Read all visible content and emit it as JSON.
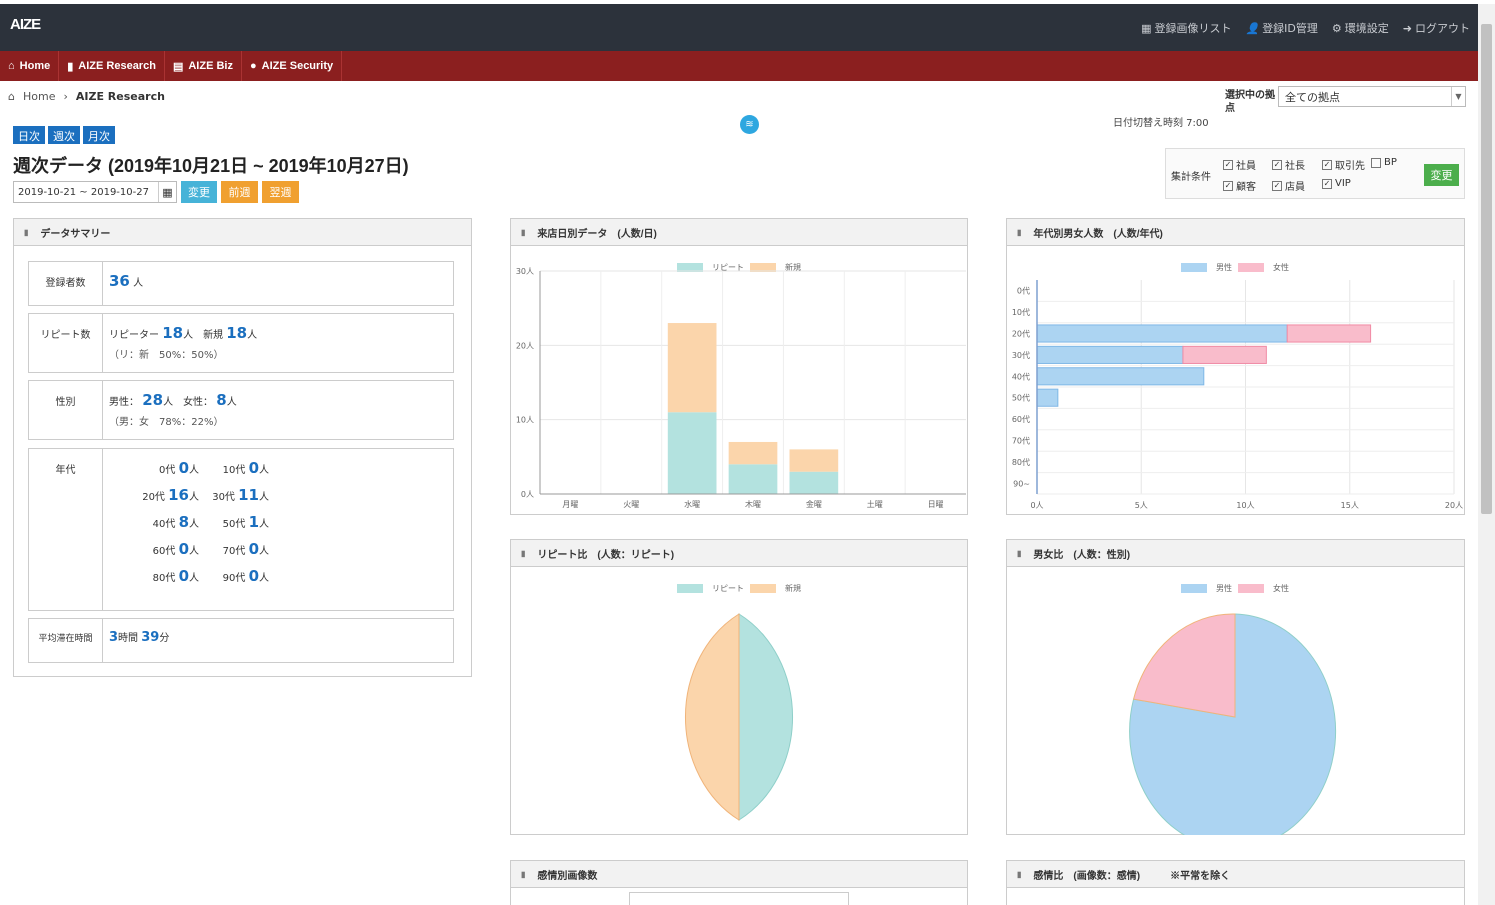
{
  "header": {
    "logo": "AIZE",
    "links": [
      {
        "icon": "grid-icon",
        "label": "登録画像リスト"
      },
      {
        "icon": "user-icon",
        "label": "登録ID管理"
      },
      {
        "icon": "gear-icon",
        "label": "環境設定"
      },
      {
        "icon": "logout-icon",
        "label": "ログアウト"
      }
    ]
  },
  "nav": [
    {
      "icon": "home-icon",
      "label": "Home"
    },
    {
      "icon": "bar-chart-icon",
      "label": "AIZE Research"
    },
    {
      "icon": "calculator-icon",
      "label": "AIZE Biz"
    },
    {
      "icon": "shield-icon",
      "label": "AIZE Security"
    }
  ],
  "breadcrumb": {
    "home": "Home",
    "current": "AIZE Research"
  },
  "site": {
    "label": "選択中の拠点",
    "value": "全ての拠点",
    "switch_time": "日付切替え時刻 7:00"
  },
  "period_tabs": [
    "日次",
    "週次",
    "月次"
  ],
  "title": "週次データ (2019年10月21日 ~ 2019年10月27日)",
  "date_range": "2019-10-21 ~ 2019-10-27",
  "buttons": {
    "change": "変更",
    "prev": "前週",
    "next": "翌週"
  },
  "filters": {
    "label": "集計条件",
    "items": [
      {
        "label": "社員",
        "checked": true
      },
      {
        "label": "社長",
        "checked": true
      },
      {
        "label": "取引先",
        "checked": true
      },
      {
        "label": "BP",
        "checked": false
      },
      {
        "label": "顧客",
        "checked": true
      },
      {
        "label": "店員",
        "checked": true
      },
      {
        "label": "VIP",
        "checked": true
      }
    ],
    "apply": "変更"
  },
  "summary": {
    "title": "データサマリー",
    "registered": {
      "label": "登録者数",
      "value": "36",
      "unit": "人"
    },
    "repeat": {
      "label": "リピート数",
      "repeater_label": "リピーター",
      "repeater": "18",
      "new_label": "新規",
      "new": "18",
      "unit": "人",
      "ratio": "（リ：新　50%：50%）"
    },
    "gender": {
      "label": "性別",
      "male_label": "男性：",
      "male": "28",
      "female_label": "女性：",
      "female": "8",
      "unit": "人",
      "ratio": "（男：女　78%：22%）"
    },
    "age": {
      "label": "年代",
      "unit": "人",
      "items": [
        {
          "k": "0代",
          "v": "0"
        },
        {
          "k": "10代",
          "v": "0"
        },
        {
          "k": "20代",
          "v": "16"
        },
        {
          "k": "30代",
          "v": "11"
        },
        {
          "k": "40代",
          "v": "8"
        },
        {
          "k": "50代",
          "v": "1"
        },
        {
          "k": "60代",
          "v": "0"
        },
        {
          "k": "70代",
          "v": "0"
        },
        {
          "k": "80代",
          "v": "0"
        },
        {
          "k": "90代",
          "v": "0"
        }
      ]
    },
    "stay": {
      "label": "平均滞在時間",
      "hours": "3",
      "h_unit": "時間",
      "minutes": "39",
      "m_unit": "分"
    }
  },
  "panels": {
    "daily": "来店日別データ　(人数/日)",
    "agegender": "年代別男女人数　(人数/年代)",
    "repeat_ratio": "リピート比　(人数：リピート)",
    "gender_ratio": "男女比　(人数：性別)",
    "emotion": "感情別画像数",
    "emotion_ratio": "感情比　(画像数：感情)",
    "emotion_note": "※平常を除く"
  },
  "chart_data": [
    {
      "type": "bar",
      "stacked": true,
      "categories": [
        "月曜",
        "火曜",
        "水曜",
        "木曜",
        "金曜",
        "土曜",
        "日曜"
      ],
      "series": [
        {
          "name": "リピート",
          "color": "#b3e2df",
          "values": [
            0,
            0,
            11,
            4,
            3,
            0,
            0
          ]
        },
        {
          "name": "新規",
          "color": "#fbd5ab",
          "values": [
            0,
            0,
            12,
            3,
            3,
            0,
            0
          ]
        }
      ],
      "ylim": [
        0,
        30
      ],
      "yticks": [
        "0人",
        "10人",
        "20人",
        "30人"
      ],
      "legend": "top"
    },
    {
      "type": "bar",
      "orientation": "horizontal",
      "stacked": true,
      "categories": [
        "0代",
        "10代",
        "20代",
        "30代",
        "40代",
        "50代",
        "60代",
        "70代",
        "80代",
        "90~"
      ],
      "series": [
        {
          "name": "男性",
          "color": "#acd4f2",
          "values": [
            0,
            0,
            12,
            7,
            8,
            1,
            0,
            0,
            0,
            0
          ]
        },
        {
          "name": "女性",
          "color": "#f9bccb",
          "values": [
            0,
            0,
            4,
            4,
            0,
            0,
            0,
            0,
            0,
            0
          ]
        }
      ],
      "xlim": [
        0,
        20
      ],
      "xticks": [
        "0人",
        "5人",
        "10人",
        "15人",
        "20人"
      ],
      "legend": "top"
    },
    {
      "type": "pie",
      "labels": [
        "リピート",
        "新規"
      ],
      "values": [
        18,
        18
      ],
      "colors": [
        "#b3e2df",
        "#fbd5ab"
      ],
      "legend": "top"
    },
    {
      "type": "pie",
      "labels": [
        "男性",
        "女性"
      ],
      "values": [
        28,
        8
      ],
      "colors": [
        "#acd4f2",
        "#f9bccb"
      ],
      "legend": "top"
    }
  ]
}
